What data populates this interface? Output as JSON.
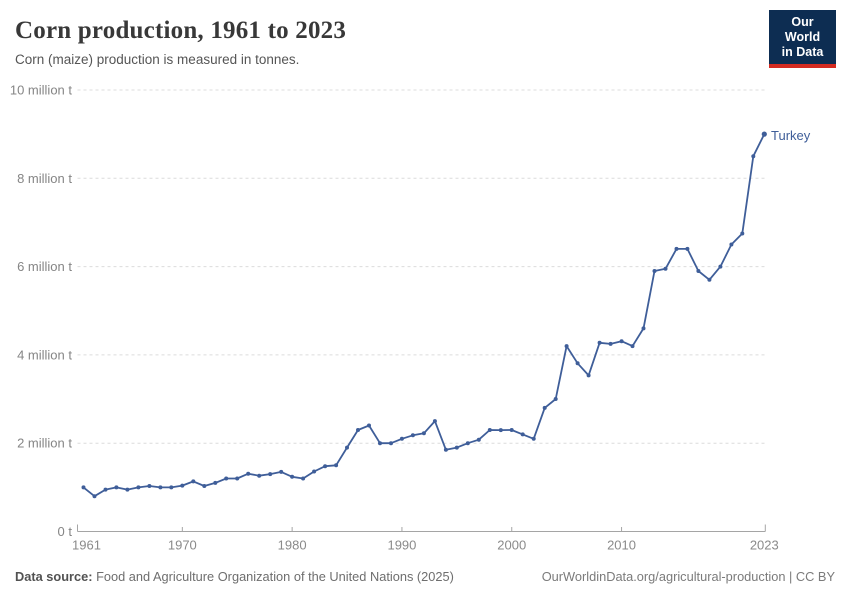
{
  "header": {
    "title": "Corn production, 1961 to 2023",
    "subtitle": "Corn (maize) production is measured in tonnes."
  },
  "logo": {
    "line1": "Our World",
    "line2": "in Data",
    "bg_color": "#0d2d52",
    "accent_color": "#d42b21"
  },
  "chart_data": {
    "type": "line",
    "title": "Corn production, 1961 to 2023",
    "xlabel": "",
    "ylabel": "tonnes",
    "xlim": [
      1961,
      2023
    ],
    "ylim": [
      0,
      10000000
    ],
    "grid": "horizontal-dashed",
    "legend_position": "end-of-line-label",
    "x_ticks": [
      {
        "value": 1961,
        "label": "1961"
      },
      {
        "value": 1970,
        "label": "1970"
      },
      {
        "value": 1980,
        "label": "1980"
      },
      {
        "value": 1990,
        "label": "1990"
      },
      {
        "value": 2000,
        "label": "2000"
      },
      {
        "value": 2010,
        "label": "2010"
      },
      {
        "value": 2023,
        "label": "2023"
      }
    ],
    "y_ticks": [
      {
        "value": 0,
        "label": "0 t"
      },
      {
        "value": 2000000,
        "label": "2 million t"
      },
      {
        "value": 4000000,
        "label": "4 million t"
      },
      {
        "value": 6000000,
        "label": "6 million t"
      },
      {
        "value": 8000000,
        "label": "8 million t"
      },
      {
        "value": 10000000,
        "label": "10 million t"
      }
    ],
    "series": [
      {
        "name": "Turkey",
        "color": "#3f5e99",
        "years": [
          1961,
          1962,
          1963,
          1964,
          1965,
          1966,
          1967,
          1968,
          1969,
          1970,
          1971,
          1972,
          1973,
          1974,
          1975,
          1976,
          1977,
          1978,
          1979,
          1980,
          1981,
          1982,
          1983,
          1984,
          1985,
          1986,
          1987,
          1988,
          1989,
          1990,
          1991,
          1992,
          1993,
          1994,
          1995,
          1996,
          1997,
          1998,
          1999,
          2000,
          2001,
          2002,
          2003,
          2004,
          2005,
          2006,
          2007,
          2008,
          2009,
          2010,
          2011,
          2012,
          2013,
          2014,
          2015,
          2016,
          2017,
          2018,
          2019,
          2020,
          2021,
          2022,
          2023
        ],
        "values": [
          1000000,
          800000,
          950000,
          1000000,
          950000,
          1000000,
          1030000,
          1000000,
          1000000,
          1040000,
          1135000,
          1030000,
          1100000,
          1200000,
          1200000,
          1310000,
          1265000,
          1300000,
          1350000,
          1240000,
          1200000,
          1360000,
          1480000,
          1500000,
          1900000,
          2300000,
          2400000,
          2000000,
          2000000,
          2100000,
          2180000,
          2225000,
          2500000,
          1850000,
          1900000,
          2000000,
          2080000,
          2300000,
          2297000,
          2300000,
          2200000,
          2100000,
          2800000,
          3000000,
          4200000,
          3810000,
          3535000,
          4274000,
          4250000,
          4310000,
          4200000,
          4600000,
          5900000,
          5950000,
          6400000,
          6400000,
          5900000,
          5700000,
          6000000,
          6500000,
          6750000,
          8500000,
          9000000
        ]
      }
    ]
  },
  "colors": {
    "gridline": "#dcdcdc",
    "axis_line": "#a5a5a5",
    "tick_label": "#8a8a8a",
    "y_label": "#858585",
    "title": "#383838",
    "subtitle": "#555555"
  },
  "footer": {
    "source_label": "Data source:",
    "source_text": " Food and Agriculture Organization of the United Nations (2025)",
    "link_text": "OurWorldinData.org/agricultural-production | CC BY"
  }
}
